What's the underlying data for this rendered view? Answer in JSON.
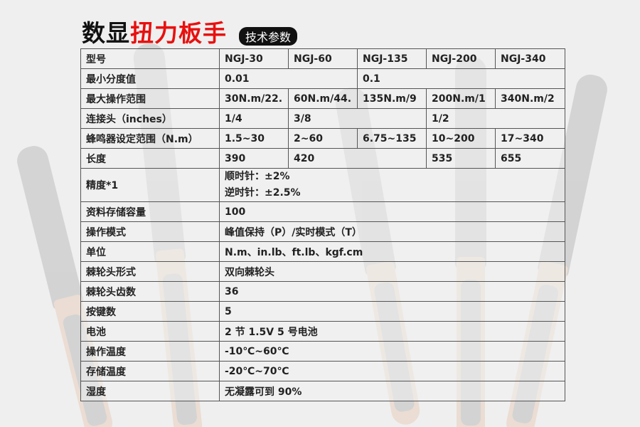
{
  "header": {
    "title_black": "数显",
    "title_red": "扭力板手",
    "badge": "技术参数"
  },
  "colors": {
    "accent_red": "#e8100f",
    "badge_bg": "#111111",
    "border": "#555555"
  },
  "table": {
    "rows": [
      {
        "label": "型号",
        "cells": [
          {
            "text": "NGJ-30",
            "span": 1
          },
          {
            "text": "NGJ-60",
            "span": 1
          },
          {
            "text": "NGJ-135",
            "span": 1
          },
          {
            "text": "NGJ-200",
            "span": 1
          },
          {
            "text": "NGJ-340",
            "span": 1
          }
        ]
      },
      {
        "label": "最小分度值",
        "cells": [
          {
            "text": "0.01",
            "span": 2
          },
          {
            "text": "0.1",
            "span": 3
          }
        ]
      },
      {
        "label": "最大操作范围",
        "cells": [
          {
            "text": "30N.m/22.",
            "span": 1
          },
          {
            "text": "60N.m/44.",
            "span": 1
          },
          {
            "text": "135N.m/9",
            "span": 1
          },
          {
            "text": "200N.m/1",
            "span": 1
          },
          {
            "text": "340N.m/2",
            "span": 1
          }
        ]
      },
      {
        "label": "连接头（inches）",
        "cells": [
          {
            "text": "1/4",
            "span": 1
          },
          {
            "text": "3/8",
            "span": 2
          },
          {
            "text": "1/2",
            "span": 2
          }
        ]
      },
      {
        "label": "蜂鸣器设定范围（N.m）",
        "cells": [
          {
            "text": "1.5~30",
            "span": 1
          },
          {
            "text": "2~60",
            "span": 1
          },
          {
            "text": "6.75~135",
            "span": 1
          },
          {
            "text": "10~200",
            "span": 1
          },
          {
            "text": "17~340",
            "span": 1
          }
        ]
      },
      {
        "label": "长度",
        "cells": [
          {
            "text": "390",
            "span": 1
          },
          {
            "text": "420",
            "span": 2
          },
          {
            "text": "535",
            "span": 1
          },
          {
            "text": "655",
            "span": 1
          }
        ]
      },
      {
        "label": "精度*1",
        "cells": [
          {
            "lines": [
              "顺时针：±2%",
              "逆时针：±2.5%"
            ],
            "span": 5
          }
        ]
      },
      {
        "label": "资料存储容量",
        "cells": [
          {
            "text": "100",
            "span": 5
          }
        ]
      },
      {
        "label": "操作模式",
        "cells": [
          {
            "text": "峰值保持（P）/实时模式（T）",
            "span": 5
          }
        ]
      },
      {
        "label": "单位",
        "cells": [
          {
            "text": "N.m、in.lb、ft.lb、kgf.cm",
            "span": 5
          }
        ]
      },
      {
        "label": "棘轮头形式",
        "cells": [
          {
            "text": "双向棘轮头",
            "span": 5
          }
        ]
      },
      {
        "label": "棘轮头齿数",
        "cells": [
          {
            "text": "36",
            "span": 5
          }
        ]
      },
      {
        "label": "按键数",
        "cells": [
          {
            "text": "5",
            "span": 5
          }
        ]
      },
      {
        "label": "电池",
        "cells": [
          {
            "text": "2 节 1.5V 5 号电池",
            "span": 5
          }
        ]
      },
      {
        "label": "操作温度",
        "cells": [
          {
            "text": "-10℃~60℃",
            "span": 5
          }
        ]
      },
      {
        "label": "存储温度",
        "cells": [
          {
            "text": "-20℃~70℃",
            "span": 5
          }
        ]
      },
      {
        "label": "湿度",
        "cells": [
          {
            "text": "无凝露可到 90%",
            "span": 5
          }
        ]
      }
    ]
  }
}
